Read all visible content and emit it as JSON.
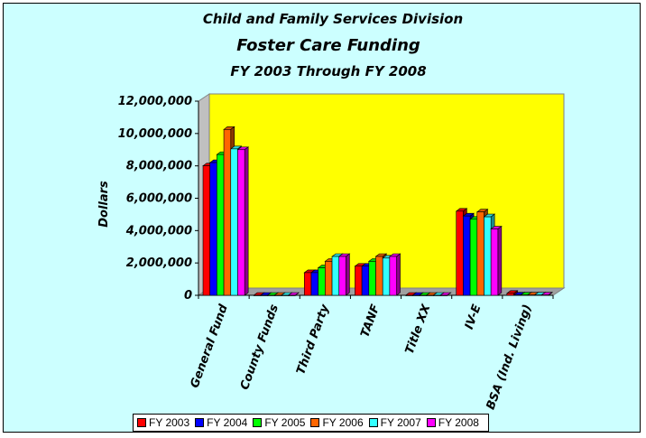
{
  "chart_data": {
    "type": "bar",
    "title": "Child and Family Services Division",
    "subtitle": "Foster Care Funding",
    "subtitle2": "FY 2003 Through FY 2008",
    "ylabel": "Dollars",
    "xlabel": "",
    "ylim": [
      0,
      12000000
    ],
    "yticks": [
      "0",
      "2,000,000",
      "4,000,000",
      "6,000,000",
      "8,000,000",
      "10,000,000",
      "12,000,000"
    ],
    "categories": [
      "General Fund",
      "County Funds",
      "Third Party",
      "TANF",
      "Title XX",
      "IV-E",
      "BSA (Ind. Living)"
    ],
    "series": [
      {
        "name": "FY 2003",
        "color": "#ff0000",
        "values": [
          8000000,
          0,
          1400000,
          1800000,
          0,
          5200000,
          120000
        ]
      },
      {
        "name": "FY 2004",
        "color": "#0000ff",
        "values": [
          8200000,
          0,
          1400000,
          1800000,
          0,
          4900000,
          20000
        ]
      },
      {
        "name": "FY 2005",
        "color": "#00ff00",
        "values": [
          8700000,
          0,
          1700000,
          2100000,
          0,
          4700000,
          20000
        ]
      },
      {
        "name": "FY 2006",
        "color": "#ff6600",
        "values": [
          10250000,
          0,
          2100000,
          2400000,
          0,
          5150000,
          20000
        ]
      },
      {
        "name": "FY 2007",
        "color": "#33ffff",
        "values": [
          9050000,
          0,
          2400000,
          2300000,
          0,
          4850000,
          20000
        ]
      },
      {
        "name": "FY 2008",
        "color": "#ff00ff",
        "values": [
          9000000,
          0,
          2400000,
          2400000,
          0,
          4100000,
          20000
        ]
      }
    ],
    "background": "#ccffff",
    "plot_background": "#ffff00",
    "grid": false,
    "legend_position": "bottom"
  }
}
